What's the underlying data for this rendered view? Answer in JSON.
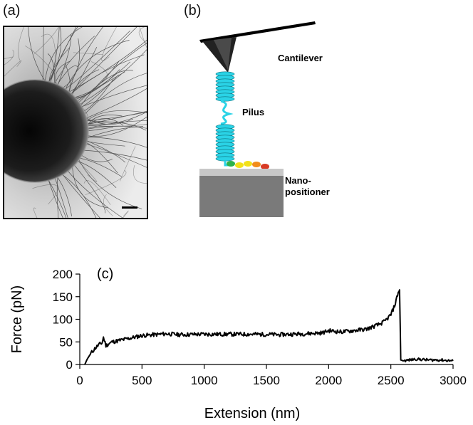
{
  "figure": {
    "panel_a_label": "(a)",
    "panel_b_label": "(b)",
    "panel_c_label": "(c)"
  },
  "schematic": {
    "cantilever_label": "Cantilever",
    "pilus_label": "Pilus",
    "nanopositioner_label_line1": "Nano-",
    "nanopositioner_label_line2": "positioner",
    "colors": {
      "pilus_helix": "#2ad3e6",
      "cantilever": "#000000",
      "nanopositioner": "#7a7a7a",
      "surface": "#c8c8c8",
      "adhesin_green": "#2cb24a",
      "adhesin_yellow": "#f2e11a",
      "adhesin_orange": "#f28c1a",
      "adhesin_red": "#d83a24"
    }
  },
  "chart_data": {
    "type": "line",
    "panel_label": "(c)",
    "xlabel": "Extension (nm)",
    "ylabel": "Force (pN)",
    "xlim": [
      0,
      3000
    ],
    "ylim": [
      0,
      200
    ],
    "xticks": [
      0,
      500,
      1000,
      1500,
      2000,
      2500,
      3000
    ],
    "yticks": [
      0,
      50,
      100,
      150,
      200
    ],
    "grid": false,
    "legend": "none",
    "line_color": "#000000",
    "series": [
      {
        "x": [
          40,
          60,
          90,
          120,
          150,
          180,
          190,
          210,
          260,
          300,
          400,
          500,
          600,
          700,
          800,
          1000,
          1200,
          1400,
          1600,
          1800,
          1950,
          2000,
          2100,
          2200,
          2300,
          2400,
          2450,
          2500,
          2530,
          2560,
          2570,
          2580,
          2600,
          2700,
          2800,
          2900,
          3000
        ],
        "y": [
          0,
          12,
          25,
          35,
          43,
          48,
          60,
          42,
          50,
          52,
          58,
          64,
          66,
          68,
          66,
          67,
          67,
          67,
          66,
          68,
          70,
          75,
          72,
          75,
          78,
          88,
          95,
          110,
          130,
          160,
          165,
          10,
          8,
          12,
          10,
          10,
          8
        ]
      }
    ]
  }
}
